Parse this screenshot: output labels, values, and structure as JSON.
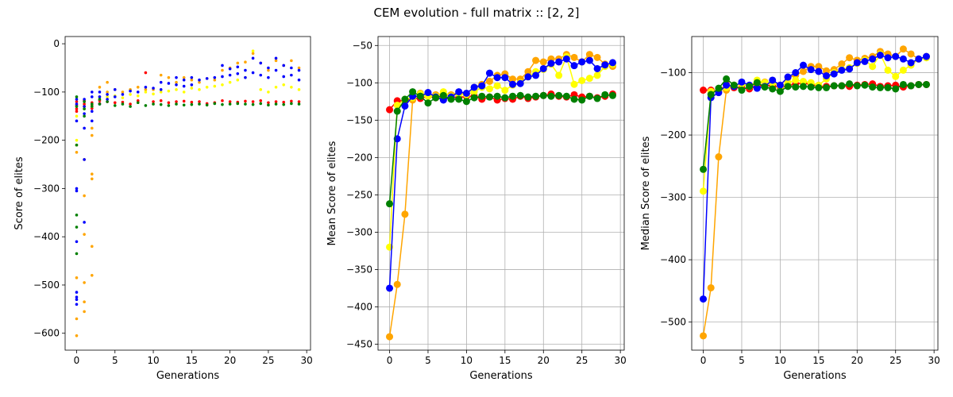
{
  "figure": {
    "title": "CEM evolution  - full matrix :: [2, 2]"
  },
  "chart_data": [
    {
      "type": "scatter",
      "xlabel": "Generations",
      "ylabel": "Score of elites",
      "xlim": [
        -1.5,
        30.5
      ],
      "ylim": [
        -635,
        15
      ],
      "xticks": [
        0,
        5,
        10,
        15,
        20,
        25,
        30
      ],
      "yticks": [
        0,
        -100,
        -200,
        -300,
        -400,
        -500,
        -600
      ],
      "grid": false,
      "series": [
        {
          "color": "#ff0000",
          "x": [
            0,
            0,
            0,
            0,
            1,
            1,
            1,
            2,
            2,
            2,
            3,
            3,
            4,
            5,
            6,
            7,
            8,
            9,
            10,
            11,
            12,
            13,
            14,
            15,
            16,
            17,
            18,
            19,
            20,
            21,
            22,
            23,
            24,
            25,
            26,
            27,
            28,
            29
          ],
          "y": [
            -120,
            -128,
            -135,
            -140,
            -118,
            -125,
            -130,
            -122,
            -128,
            -134,
            -118,
            -124,
            -120,
            -122,
            -121,
            -125,
            -118,
            -60,
            -120,
            -118,
            -122,
            -120,
            -119,
            -121,
            -120,
            -124,
            -122,
            -118,
            -120,
            -121,
            -119,
            -120,
            -118,
            -122,
            -120,
            -121,
            -119,
            -120
          ]
        },
        {
          "color": "#ffa500",
          "x": [
            0,
            0,
            0,
            0,
            0,
            1,
            1,
            1,
            1,
            1,
            1,
            1,
            2,
            2,
            2,
            2,
            2,
            2,
            3,
            3,
            4,
            4,
            5,
            6,
            7,
            8,
            9,
            10,
            11,
            12,
            13,
            14,
            15,
            16,
            17,
            18,
            19,
            20,
            21,
            22,
            23,
            24,
            25,
            26,
            27,
            28,
            29
          ],
          "y": [
            -210,
            -225,
            -485,
            -570,
            -605,
            -240,
            -315,
            -395,
            -495,
            -535,
            -555,
            -130,
            -175,
            -190,
            -270,
            -280,
            -420,
            -480,
            -90,
            -110,
            -80,
            -100,
            -95,
            -100,
            -95,
            -90,
            -95,
            -95,
            -65,
            -70,
            -80,
            -70,
            -75,
            -80,
            -72,
            -75,
            -55,
            -50,
            -40,
            -38,
            -20,
            -40,
            -55,
            -35,
            -45,
            -35,
            -50
          ]
        },
        {
          "color": "#ffff00",
          "x": [
            0,
            0,
            1,
            2,
            3,
            4,
            5,
            6,
            7,
            8,
            9,
            10,
            11,
            12,
            13,
            14,
            15,
            16,
            17,
            18,
            19,
            20,
            21,
            22,
            23,
            24,
            25,
            26,
            27,
            28,
            29
          ],
          "y": [
            -150,
            -200,
            -135,
            -130,
            -115,
            -110,
            -108,
            -112,
            -105,
            -108,
            -100,
            -104,
            -100,
            -98,
            -95,
            -100,
            -92,
            -95,
            -90,
            -88,
            -85,
            -80,
            -75,
            -70,
            -15,
            -95,
            -100,
            -90,
            -85,
            -90,
            -95
          ]
        },
        {
          "color": "#0000ff",
          "x": [
            0,
            0,
            0,
            0,
            0,
            0,
            0,
            0,
            0,
            0,
            1,
            1,
            1,
            1,
            1,
            1,
            2,
            2,
            2,
            2,
            3,
            3,
            3,
            4,
            4,
            5,
            5,
            6,
            7,
            8,
            9,
            10,
            11,
            11,
            12,
            13,
            13,
            14,
            14,
            15,
            15,
            16,
            17,
            18,
            19,
            19,
            20,
            20,
            21,
            21,
            22,
            22,
            23,
            23,
            24,
            24,
            25,
            25,
            26,
            26,
            27,
            27,
            28,
            28,
            29,
            29
          ],
          "y": [
            -115,
            -125,
            -160,
            -300,
            -305,
            -410,
            -515,
            -525,
            -530,
            -540,
            -115,
            -145,
            -175,
            -240,
            -370,
            -130,
            -100,
            -110,
            -140,
            -160,
            -100,
            -110,
            -125,
            -105,
            -115,
            -95,
            -110,
            -105,
            -98,
            -100,
            -90,
            -92,
            -80,
            -95,
            -82,
            -70,
            -85,
            -75,
            -88,
            -70,
            -85,
            -75,
            -72,
            -70,
            -45,
            -68,
            -52,
            -65,
            -48,
            -62,
            -55,
            -70,
            -30,
            -60,
            -40,
            -65,
            -50,
            -70,
            -30,
            -55,
            -45,
            -68,
            -50,
            -65,
            -55,
            -75
          ]
        },
        {
          "color": "#008000",
          "x": [
            0,
            0,
            0,
            0,
            0,
            0,
            1,
            1,
            1,
            2,
            2,
            3,
            3,
            4,
            5,
            6,
            7,
            8,
            9,
            10,
            11,
            12,
            13,
            14,
            15,
            16,
            17,
            18,
            19,
            20,
            21,
            22,
            23,
            24,
            25,
            26,
            27,
            28,
            29
          ],
          "y": [
            -110,
            -130,
            -210,
            -355,
            -380,
            -435,
            -120,
            -135,
            -150,
            -125,
            -130,
            -115,
            -125,
            -120,
            -128,
            -125,
            -130,
            -122,
            -128,
            -125,
            -126,
            -128,
            -125,
            -127,
            -126,
            -125,
            -127,
            -124,
            -126,
            -125,
            -124,
            -125,
            -126,
            -124,
            -127,
            -125,
            -126,
            -124,
            -125
          ]
        }
      ]
    },
    {
      "type": "line",
      "xlabel": "Generations",
      "ylabel": "Mean Score of elites",
      "xlim": [
        -1.5,
        30.5
      ],
      "ylim": [
        -458,
        -38
      ],
      "xticks": [
        0,
        5,
        10,
        15,
        20,
        25,
        30
      ],
      "yticks": [
        -50,
        -100,
        -150,
        -200,
        -250,
        -300,
        -350,
        -400,
        -450
      ],
      "grid": true,
      "x": [
        0,
        1,
        2,
        3,
        4,
        5,
        6,
        7,
        8,
        9,
        10,
        11,
        12,
        13,
        14,
        15,
        16,
        17,
        18,
        19,
        20,
        21,
        22,
        23,
        24,
        25,
        26,
        27,
        28,
        29
      ],
      "series": [
        {
          "color": "#ff0000",
          "values": [
            -136,
            -124,
            -124,
            -121,
            -121,
            -118,
            -120,
            -121,
            -119,
            -120,
            -118,
            -118,
            -122,
            -119,
            -123,
            -121,
            -122,
            -118,
            -121,
            -119,
            -117,
            -115,
            -118,
            -119,
            -116,
            -119,
            -118,
            -120,
            -118,
            -115
          ]
        },
        {
          "color": "#ffa500",
          "values": [
            -440,
            -370,
            -276,
            -123,
            -114,
            -118,
            -116,
            -117,
            -116,
            -113,
            -115,
            -106,
            -102,
            -98,
            -90,
            -88,
            -95,
            -95,
            -85,
            -70,
            -72,
            -68,
            -68,
            -62,
            -66,
            -72,
            -62,
            -66,
            -75,
            -78
          ]
        },
        {
          "color": "#ffff00",
          "values": [
            -320,
            -130,
            -122,
            -120,
            -115,
            -118,
            -118,
            -112,
            -118,
            -115,
            -116,
            -112,
            -106,
            -108,
            -104,
            -110,
            -103,
            -100,
            -92,
            -85,
            -82,
            -75,
            -90,
            -65,
            -102,
            -97,
            -94,
            -90,
            -78,
            -75
          ]
        },
        {
          "color": "#0000ff",
          "values": [
            -375,
            -175,
            -131,
            -118,
            -118,
            -113,
            -119,
            -123,
            -119,
            -112,
            -114,
            -106,
            -104,
            -87,
            -93,
            -93,
            -102,
            -101,
            -92,
            -90,
            -81,
            -74,
            -72,
            -68,
            -77,
            -72,
            -70,
            -81,
            -76,
            -73
          ]
        },
        {
          "color": "#008000",
          "values": [
            -262,
            -138,
            -122,
            -112,
            -118,
            -127,
            -120,
            -117,
            -122,
            -122,
            -125,
            -120,
            -118,
            -119,
            -118,
            -120,
            -118,
            -117,
            -119,
            -118,
            -117,
            -118,
            -117,
            -118,
            -122,
            -123,
            -118,
            -121,
            -116,
            -117
          ]
        }
      ]
    },
    {
      "type": "line",
      "xlabel": "Generations",
      "ylabel": "Median Score of elites",
      "xlim": [
        -1.5,
        30.5
      ],
      "ylim": [
        -545,
        -42
      ],
      "xticks": [
        0,
        5,
        10,
        15,
        20,
        25,
        30
      ],
      "yticks": [
        -100,
        -200,
        -300,
        -400,
        -500
      ],
      "grid": true,
      "x": [
        0,
        1,
        2,
        3,
        4,
        5,
        6,
        7,
        8,
        9,
        10,
        11,
        12,
        13,
        14,
        15,
        16,
        17,
        18,
        19,
        20,
        21,
        22,
        23,
        24,
        25,
        26,
        27,
        28,
        29
      ],
      "series": [
        {
          "color": "#ff0000",
          "values": [
            -128,
            -128,
            -130,
            -119,
            -124,
            -124,
            -126,
            -122,
            -120,
            -121,
            -124,
            -121,
            -118,
            -116,
            -119,
            -122,
            -122,
            -121,
            -121,
            -122,
            -120,
            -119,
            -118,
            -122,
            -121,
            -120,
            -123,
            -121,
            -119,
            -119
          ]
        },
        {
          "color": "#ffa500",
          "values": [
            -522,
            -445,
            -235,
            -128,
            -120,
            -118,
            -122,
            -117,
            -115,
            -117,
            -120,
            -108,
            -104,
            -98,
            -90,
            -90,
            -97,
            -95,
            -86,
            -76,
            -80,
            -77,
            -74,
            -66,
            -70,
            -74,
            -62,
            -70,
            -78,
            -74
          ]
        },
        {
          "color": "#ffff00",
          "values": [
            -290,
            -130,
            -130,
            -124,
            -120,
            -118,
            -122,
            -112,
            -116,
            -116,
            -122,
            -116,
            -112,
            -114,
            -116,
            -120,
            -110,
            -100,
            -95,
            -92,
            -85,
            -80,
            -90,
            -70,
            -96,
            -106,
            -96,
            -88,
            -78,
            -76
          ]
        },
        {
          "color": "#0000ff",
          "values": [
            -463,
            -140,
            -132,
            -120,
            -122,
            -115,
            -120,
            -125,
            -122,
            -112,
            -120,
            -107,
            -100,
            -88,
            -95,
            -98,
            -105,
            -102,
            -96,
            -94,
            -84,
            -82,
            -78,
            -72,
            -76,
            -74,
            -78,
            -84,
            -78,
            -74
          ]
        },
        {
          "color": "#008000",
          "values": [
            -255,
            -135,
            -125,
            -110,
            -120,
            -128,
            -122,
            -116,
            -123,
            -126,
            -130,
            -122,
            -123,
            -122,
            -123,
            -124,
            -124,
            -121,
            -121,
            -118,
            -121,
            -120,
            -123,
            -124,
            -124,
            -126,
            -119,
            -121,
            -119,
            -119
          ]
        }
      ]
    }
  ]
}
